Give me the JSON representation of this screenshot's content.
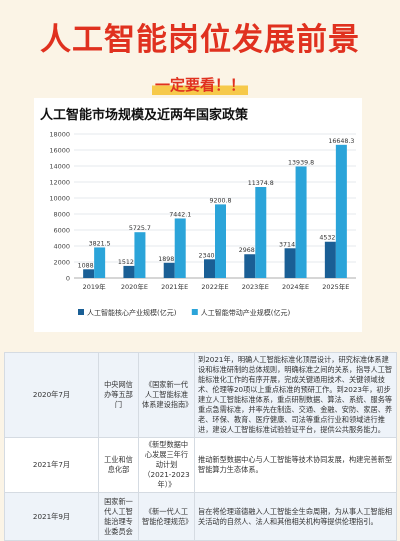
{
  "header": {
    "title": "人工智能岗位发展前景",
    "subtitle": "一定要看！！"
  },
  "chart_data": {
    "type": "bar",
    "title": "人工智能市场规模及近两年国家政策",
    "categories": [
      "2019年",
      "2020年E",
      "2021年E",
      "2022年E",
      "2023年E",
      "2024年E",
      "2025年E"
    ],
    "series": [
      {
        "name": "人工智能核心产业规模(亿元)",
        "color": "#1a5f95",
        "values": [
          1088.6,
          1512.3,
          1898.1,
          2340.4,
          2968.9,
          3714.6,
          4532.8
        ],
        "labels": [
          "1088.6",
          "1512.3",
          "1898.1",
          "2340.4",
          "2968.9",
          "3714.6",
          "4532.8"
        ]
      },
      {
        "name": "人工智能带动产业规模(亿元)",
        "color": "#2ba4d9",
        "values": [
          3821.5,
          5725.7,
          7442.1,
          9200.8,
          11374.8,
          13939.8,
          16648.3
        ],
        "labels": [
          "3821.5",
          "5725.7",
          "7442.1",
          "9200.8",
          "11374.8",
          "13939.8",
          "16648.3"
        ]
      }
    ],
    "yticks": [
      "0",
      "2000",
      "4000",
      "6000",
      "8000",
      "10000",
      "12000",
      "14000",
      "16000",
      "18000"
    ],
    "ylim": [
      0,
      18000
    ],
    "grid": true,
    "legend": "bottom"
  },
  "policy_table": {
    "rows": [
      {
        "date": "2020年7月",
        "dept": "中央网信办等五部门",
        "doc": "《国家新一代人工智能标准体系建设指南》",
        "content": "到2021年，明确人工智能标准化顶层设计，研究标准体系建设和标准研制的总体规则，明确标准之间的关系，指导人工智能标准化工作的有序开展，完成关键通用技术、关键领域技术、伦理等20项以上重点标准的预研工作。到2023年，初步建立人工智能标准体系，重点研制数据、算法、系统、服务等重点急需标准，并率先在制造、交通、金融、安防、家居、养老、环保、教育、医疗健康、司法等重点行业和领域进行推进，建设人工智能标准试验验证平台，提供公共服务能力。"
      },
      {
        "date": "2021年7月",
        "dept": "工业和信息化部",
        "doc": "《新型数据中心发展三年行动计划（2021-2023年）》",
        "content": "推动新型数据中心与人工智能等技术协同发展，构建完善新型智能算力生态体系。"
      },
      {
        "date": "2021年9月",
        "dept": "国家新一代人工智能治理专业委员会",
        "doc": "《新一代人工智能伦理规范》",
        "content": "旨在将伦理道德融入人工智能全生命周期，为从事人工智能相关活动的自然人、法人和其他相关机构等提供伦理指引。"
      }
    ]
  }
}
